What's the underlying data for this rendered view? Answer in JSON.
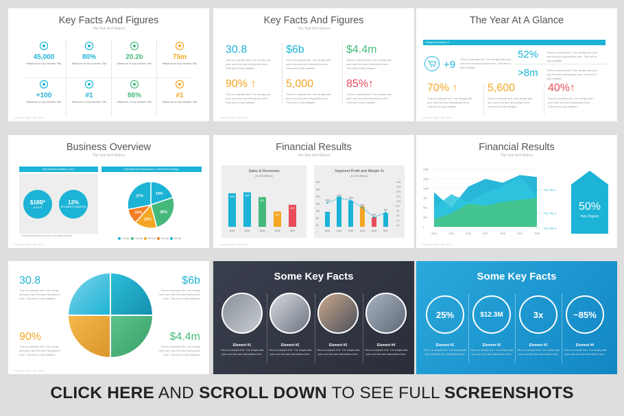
{
  "banner": {
    "p1": "CLICK HERE",
    "p2": " AND ",
    "p3": "SCROLL DOWN",
    "p4": " TO SEE FULL ",
    "p5": "SCREENSHOTS"
  },
  "s1": {
    "title": "Key Facts And Figures",
    "subtitle": "The Year At A Glance",
    "footer": "Company Name • Mar 2018",
    "facts": [
      {
        "v": "45,000",
        "l": "Milestone or Key Number Title",
        "c": "#1cb3d6",
        "icon": "people-icon"
      },
      {
        "v": "80%",
        "l": "Milestone or Key Number Title",
        "c": "#1cb3d6",
        "icon": "badge-icon"
      },
      {
        "v": "20.2b",
        "l": "Milestone or Key Number Title",
        "c": "#45b97c",
        "icon": "bar-chart-icon"
      },
      {
        "v": "75m",
        "l": "Milestone or Key Number Title",
        "c": "#f5a623",
        "icon": "handshake-icon"
      },
      {
        "v": "+100",
        "l": "Milestone or Key Number Title",
        "c": "#1cb3d6",
        "icon": "network-icon"
      },
      {
        "v": "#1",
        "l": "Milestone or Key Number Title",
        "c": "#1cb3d6",
        "icon": "globe-icon"
      },
      {
        "v": "86%",
        "l": "Milestone or Key Number Title",
        "c": "#45b97c",
        "icon": "pie-chart-icon"
      },
      {
        "v": "#1",
        "l": "Milestone or Key Number Title",
        "c": "#f5a623",
        "icon": "medal-icon"
      }
    ]
  },
  "s2": {
    "title": "Key Facts And Figures",
    "subtitle": "The Year At A Glance",
    "footer": "Company Name • Mar 2018",
    "text": "This is a sample text. You simply add your own text and description here. This text is fully editable.",
    "items": [
      {
        "v": "30.8",
        "c": "#1cb3d6"
      },
      {
        "v": "$6b",
        "c": "#1cb3d6"
      },
      {
        "v": "$4.4m",
        "c": "#45b97c"
      },
      {
        "v": "90% ↑",
        "c": "#f5a623"
      },
      {
        "v": "5,000",
        "c": "#f5a623"
      },
      {
        "v": "85%↑",
        "c": "#e84c5a"
      }
    ]
  },
  "s3": {
    "title": "The Year At A Glance",
    "subtitle": "",
    "footer": "Company Name • Mar 2018",
    "bar": "Category Business 1",
    "plus9": "+9",
    "pct52": "52%",
    "gt8m": ">8m",
    "text": "This is a sample text. You simply add your own text and description here. This text is fully editable.",
    "items": [
      {
        "v": "70% ↑",
        "c": "#f5a623"
      },
      {
        "v": "5,600",
        "c": "#f5a623"
      },
      {
        "v": "40%↑",
        "c": "#e84c5a"
      }
    ]
  },
  "s4": {
    "title": "Business Overview",
    "subtitle": "The Year At A Glance",
    "footer": "Company Name • Mar 2018",
    "bar1": "Key Business Metrics | 2017",
    "bar2": "Key Business Breakdown | 2016-2018 Average",
    "c1v": "$18B*",
    "c1l": "SALES",
    "c2v": "13%",
    "c2l": "SEGMENT MARGIN",
    "note": "* Some information excludes non-segment sales",
    "pie": [
      {
        "v": "19%",
        "c": "#1cb3d6"
      },
      {
        "v": "25%",
        "c": "#45b97c"
      },
      {
        "v": "15%",
        "c": "#f5a623"
      },
      {
        "v": "10%",
        "c": "#f57c23"
      },
      {
        "v": "27%",
        "c": "#1cb3d6"
      }
    ],
    "legend": [
      "1st Qtr",
      "2nd Qtr",
      "3rd Qtr",
      "4th Qtr",
      "5th Qtr"
    ]
  },
  "s5": {
    "title": "Financial Results",
    "subtitle": "The Year At A Glance",
    "footer": "Company Name • Mar 2018",
    "left": {
      "title": "Sales & Revenues",
      "sub": "(in USD Billions)",
      "cats": [
        "2013",
        "2014",
        "2015",
        "2016",
        "2017"
      ],
      "vals": [
        "$35",
        "$36",
        "$31",
        "$16",
        "$23"
      ]
    },
    "right": {
      "title": "Segment Profit and Margin %",
      "sub": "(in USD Billions)",
      "cats": [
        "2012",
        "2013",
        "2014",
        "2015",
        "2016",
        "2017"
      ],
      "yl": [
        "$30",
        "$25",
        "$20",
        "$15",
        "$10",
        "$5",
        "$0"
      ],
      "yr": [
        "18%",
        "16%",
        "14%",
        "12%",
        "10%",
        "8%",
        "6%",
        "4%",
        "2%",
        "0%"
      ],
      "pts": [
        "10%",
        "12%",
        "11%",
        "8%",
        "4%",
        "6%"
      ]
    }
  },
  "s6": {
    "title": "Financial Results",
    "subtitle": "The Year At A Glance",
    "footer": "Company Name • Mar 2018",
    "y": [
      "1500",
      "1250",
      "1000",
      "750",
      "500",
      "250",
      "0"
    ],
    "x": [
      "2014",
      "2015",
      "2016",
      "2017",
      "2018",
      "2019",
      "2020"
    ],
    "series": [
      "Key Title 1",
      "Key Title 2",
      "Key Title 3"
    ],
    "kpi": "50%",
    "kpilabel": "Key Figure"
  },
  "s7": {
    "footer": "Company Name • Mar 2018",
    "text": "This is a sample text. You simply add your own text and description here. This text is fully editable.",
    "items": [
      {
        "v": "30.8",
        "c": "#1cb3d6"
      },
      {
        "v": "$6b",
        "c": "#1cb3d6"
      },
      {
        "v": "90%",
        "c": "#f5a623"
      },
      {
        "v": "$4.4m",
        "c": "#45b97c"
      }
    ]
  },
  "s8": {
    "title": "Some Key Facts",
    "desc": "This is a sample text. You simply add your own text and description here.",
    "elements": [
      "Element #1",
      "Element #2",
      "Element #3",
      "Element #4"
    ]
  },
  "s9": {
    "title": "Some Key Facts",
    "desc": "This is a sample text. You simply add your own text and description here.",
    "elements": [
      "Element #1",
      "Element #2",
      "Element #3",
      "Element #4"
    ],
    "vals": [
      "25%",
      "$12.3M",
      "3x",
      "~85%"
    ]
  }
}
